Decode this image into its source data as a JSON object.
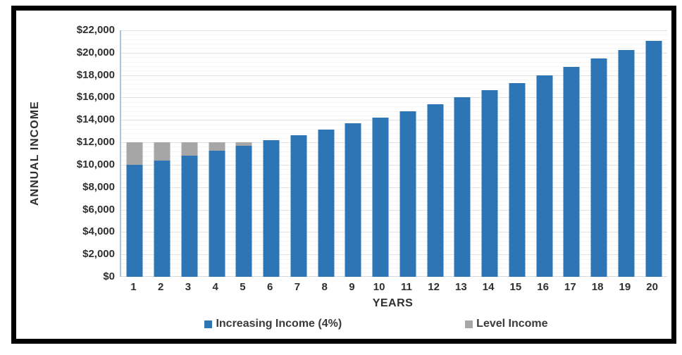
{
  "chart_data": {
    "type": "bar",
    "title": "",
    "xlabel": "YEARS",
    "ylabel": "ANNUAL INCOME",
    "categories": [
      "1",
      "2",
      "3",
      "4",
      "5",
      "6",
      "7",
      "8",
      "9",
      "10",
      "11",
      "12",
      "13",
      "14",
      "15",
      "16",
      "17",
      "18",
      "19",
      "20"
    ],
    "series": [
      {
        "name": "Increasing Income (4%)",
        "color": "#2E75B6",
        "values": [
          10000,
          10400,
          10816,
          11249,
          11699,
          12167,
          12653,
          13159,
          13686,
          14233,
          14802,
          15395,
          16010,
          16651,
          17317,
          18009,
          18730,
          19479,
          20258,
          21068
        ]
      },
      {
        "name": "Level Income",
        "color": "#A6A6A6",
        "values": [
          12000,
          12000,
          12000,
          12000,
          12000,
          12000,
          12000,
          12000,
          12000,
          12000,
          12000,
          12000,
          12000,
          12000,
          12000,
          12000,
          12000,
          12000,
          12000,
          12000
        ]
      }
    ],
    "bar_overlap": "full-overlap (gray drawn behind blue)",
    "ylim": [
      0,
      22000
    ],
    "ytick_step": 2000,
    "ytick_labels": [
      "$0",
      "$2,000",
      "$4,000",
      "$6,000",
      "$8,000",
      "$10,000",
      "$12,000",
      "$14,000",
      "$16,000",
      "$18,000",
      "$20,000",
      "$22,000"
    ],
    "grid": {
      "major": true,
      "minor": true,
      "minor_step": 400
    },
    "legend_position": "bottom"
  },
  "colors": {
    "frame_border": "#000000",
    "background": "#ffffff",
    "axis_line": "#a8c4e0",
    "gridline_major": "#e2e2e2",
    "gridline_minor": "#f4f4f4",
    "text": "#2f2f2f"
  }
}
